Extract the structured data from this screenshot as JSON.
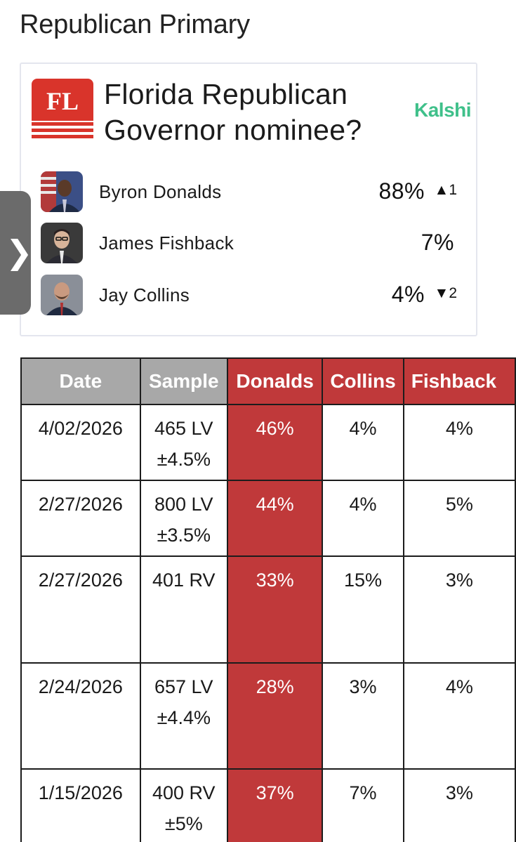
{
  "section_title": "Republican Primary",
  "market": {
    "state_badge": "FL",
    "question": "Florida Republican Governor nominee?",
    "source": "Kalshi",
    "candidates": [
      {
        "name": "Byron Donalds",
        "pct": "88%",
        "change": "▲1"
      },
      {
        "name": "James Fishback",
        "pct": "7%",
        "change": ""
      },
      {
        "name": "Jay Collins",
        "pct": "4%",
        "change": "▼2"
      }
    ]
  },
  "drawer": {
    "icon": "chevron-right-icon",
    "glyph": "❯"
  },
  "table": {
    "headers": [
      "Date",
      "Sample",
      "Donalds",
      "Collins",
      "Fishback"
    ],
    "rows": [
      {
        "date": "4/02/2026",
        "sample": "465 LV",
        "moe": "±4.5%",
        "donalds": "46%",
        "collins": "4%",
        "fishback": "4%"
      },
      {
        "date": "2/27/2026",
        "sample": "800 LV",
        "moe": "±3.5%",
        "donalds": "44%",
        "collins": "4%",
        "fishback": "5%"
      },
      {
        "date": "2/27/2026",
        "sample": "401 RV",
        "moe": "",
        "donalds": "33%",
        "collins": "15%",
        "fishback": "3%"
      },
      {
        "date": "2/24/2026",
        "sample": "657 LV",
        "moe": "±4.4%",
        "donalds": "28%",
        "collins": "3%",
        "fishback": "4%"
      },
      {
        "date": "1/15/2026",
        "sample": "400 RV",
        "moe": "±5%",
        "donalds": "37%",
        "collins": "7%",
        "fishback": "3%"
      }
    ]
  },
  "colors": {
    "republican_red": "#c0393a",
    "header_gray": "#a8a8a8",
    "kalshi_green": "#3fc08a",
    "drawer_gray": "#6b6b6b"
  }
}
